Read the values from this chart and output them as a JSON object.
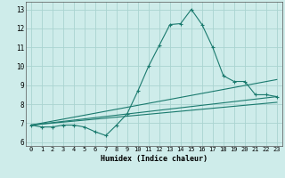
{
  "title": "",
  "xlabel": "Humidex (Indice chaleur)",
  "ylabel": "",
  "bg_color": "#ceecea",
  "grid_color": "#aad4d0",
  "line_color": "#1a7a6e",
  "xlim": [
    -0.5,
    23.5
  ],
  "ylim": [
    5.8,
    13.4
  ],
  "xticks": [
    0,
    1,
    2,
    3,
    4,
    5,
    6,
    7,
    8,
    9,
    10,
    11,
    12,
    13,
    14,
    15,
    16,
    17,
    18,
    19,
    20,
    21,
    22,
    23
  ],
  "yticks": [
    6,
    7,
    8,
    9,
    10,
    11,
    12,
    13
  ],
  "main_series": {
    "x": [
      0,
      1,
      2,
      3,
      4,
      5,
      6,
      7,
      8,
      9,
      10,
      11,
      12,
      13,
      14,
      15,
      16,
      17,
      18,
      19,
      20,
      21,
      22,
      23
    ],
    "y": [
      6.9,
      6.8,
      6.8,
      6.9,
      6.9,
      6.8,
      6.55,
      6.35,
      6.9,
      7.5,
      8.7,
      10.0,
      11.1,
      12.2,
      12.25,
      13.0,
      12.2,
      11.0,
      9.5,
      9.2,
      9.2,
      8.5,
      8.5,
      8.4
    ]
  },
  "trend_lines": [
    {
      "x": [
        0,
        23
      ],
      "y": [
        6.9,
        9.3
      ]
    },
    {
      "x": [
        0,
        23
      ],
      "y": [
        6.9,
        8.4
      ]
    },
    {
      "x": [
        0,
        23
      ],
      "y": [
        6.9,
        8.1
      ]
    }
  ]
}
